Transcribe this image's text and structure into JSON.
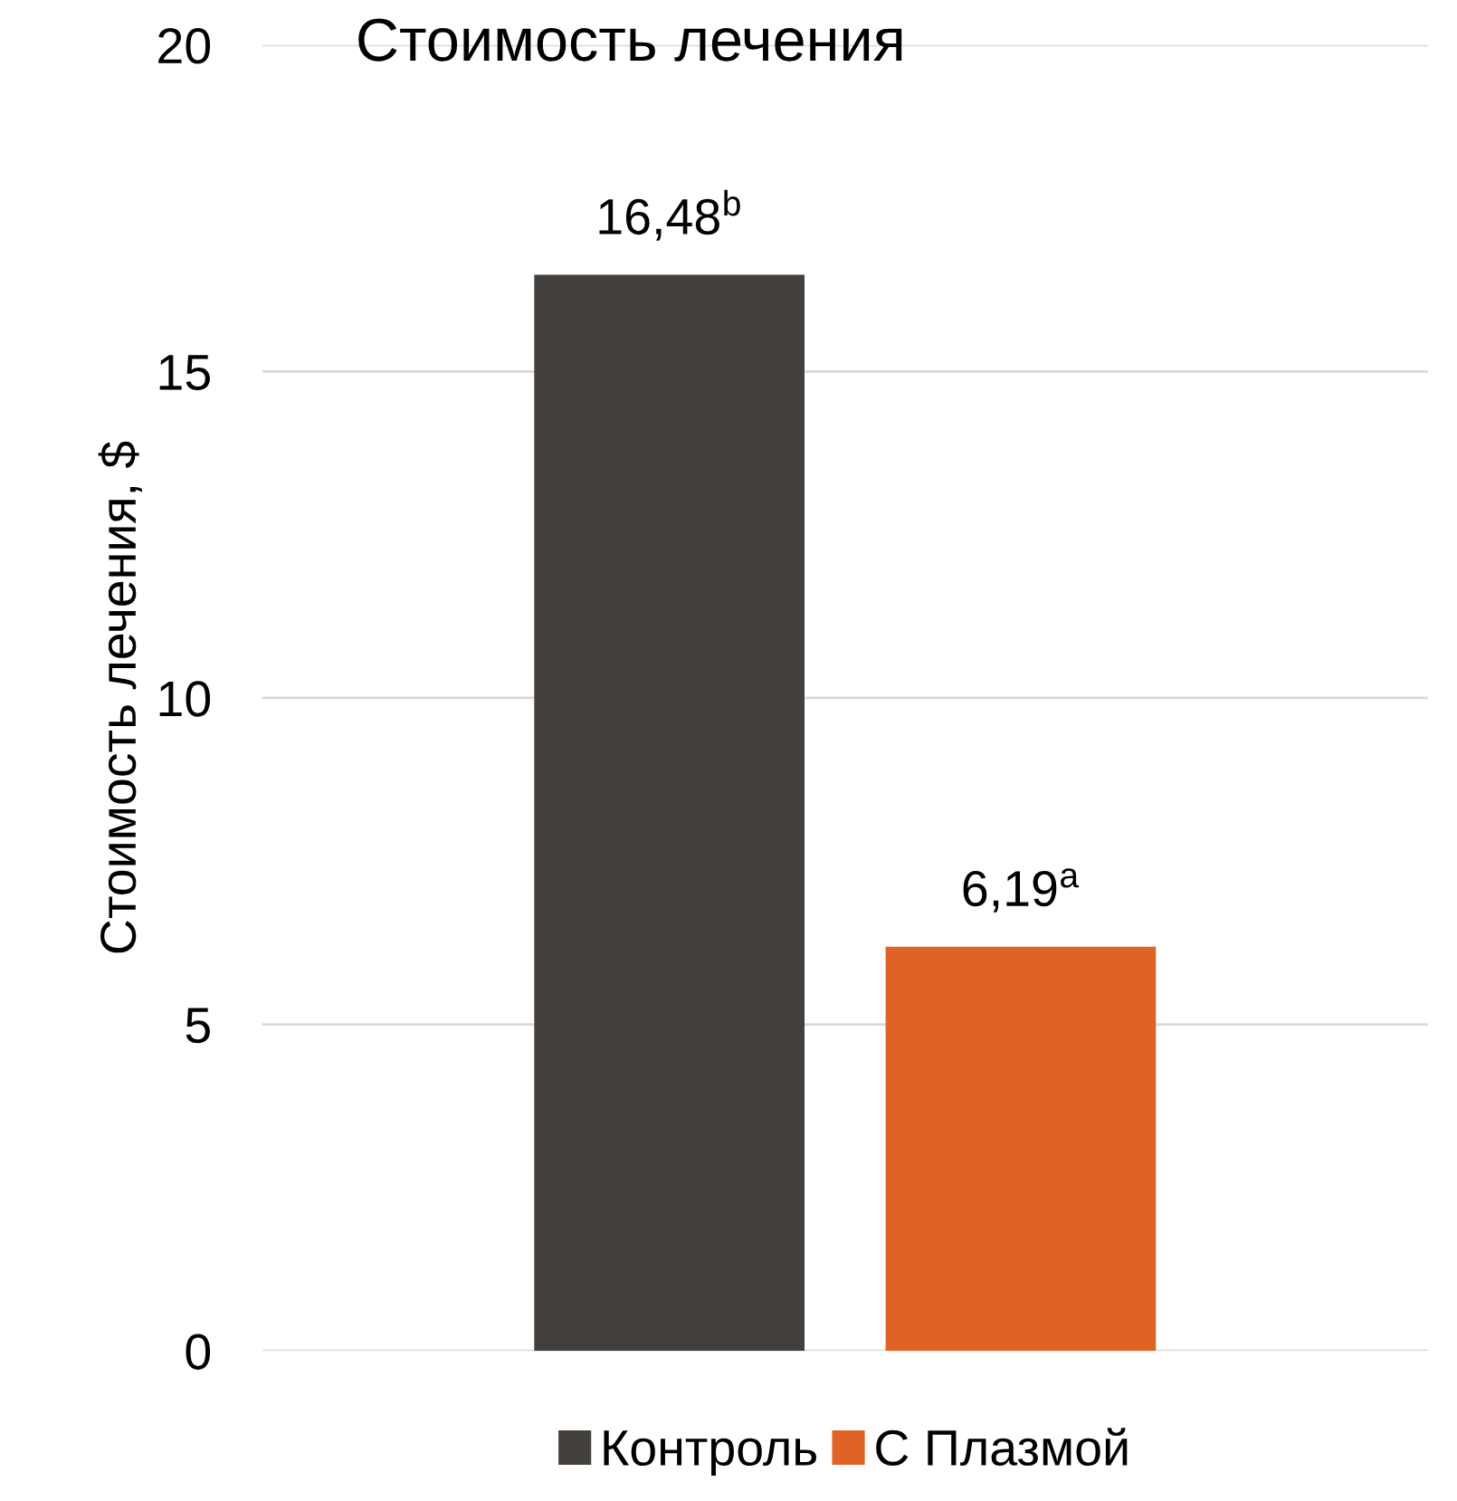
{
  "chart_data": {
    "type": "bar",
    "title": "Стоимость лечения",
    "ylabel": "Стоимость лечения, $",
    "categories": [
      null
    ],
    "series": [
      {
        "name": "Контроль",
        "color": "#423f3d",
        "values": [
          16.48
        ],
        "value_labels": [
          "16,48$^{b}$"
        ]
      },
      {
        "name": "С Плазмой",
        "color": "#e06326",
        "values": [
          6.19
        ],
        "value_labels": [
          "6,19$^{a}$"
        ]
      }
    ],
    "ylim": [
      0,
      20
    ],
    "yticks": [
      0,
      5,
      10,
      15,
      20
    ],
    "grid": "y",
    "legend": "bottom"
  }
}
